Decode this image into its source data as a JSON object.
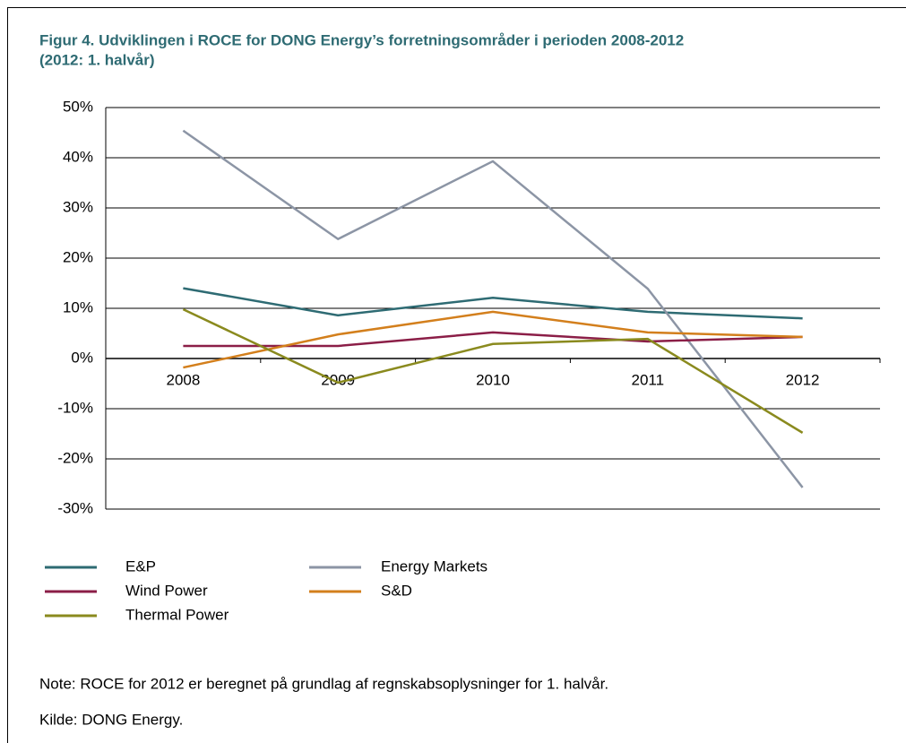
{
  "chart_data": {
    "type": "line",
    "title": "Figur 4. Udviklingen i ROCE for DONG Energy’s forretningsområder i perioden 2008-2012",
    "subtitle": "(2012: 1. halvår)",
    "categories": [
      "2008",
      "2009",
      "2010",
      "2011",
      "2012"
    ],
    "series": [
      {
        "name": "E&P",
        "color": "#2e6b73",
        "values": [
          14,
          8.6,
          12.1,
          9.3,
          8
        ]
      },
      {
        "name": "Energy Markets",
        "color": "#8c95a5",
        "values": [
          45.4,
          23.8,
          39.3,
          13.9,
          -25.7
        ]
      },
      {
        "name": "Wind Power",
        "color": "#8b1e47",
        "values": [
          2.5,
          2.5,
          5.2,
          3.4,
          4.3
        ]
      },
      {
        "name": "S&D",
        "color": "#d37f1c",
        "values": [
          -1.8,
          4.8,
          9.3,
          5.2,
          4.3
        ]
      },
      {
        "name": "Thermal Power",
        "color": "#8a8a1e",
        "values": [
          9.8,
          -4.8,
          2.9,
          3.9,
          -14.8
        ]
      }
    ],
    "ylim": [
      -30,
      50
    ],
    "yticks": [
      {
        "value": -30,
        "label": "-30%"
      },
      {
        "value": -20,
        "label": "-20%"
      },
      {
        "value": -10,
        "label": "-10%"
      },
      {
        "value": 0,
        "label": "0%"
      },
      {
        "value": 10,
        "label": "10%"
      },
      {
        "value": 20,
        "label": "20%"
      },
      {
        "value": 30,
        "label": "30%"
      },
      {
        "value": 40,
        "label": "40%"
      },
      {
        "value": 50,
        "label": "50%"
      }
    ],
    "grid": true,
    "note": "Note:  ROCE for 2012 er beregnet på grundlag af regnskabsoplysninger for 1. halvår.",
    "source": "Kilde:  DONG Energy."
  }
}
